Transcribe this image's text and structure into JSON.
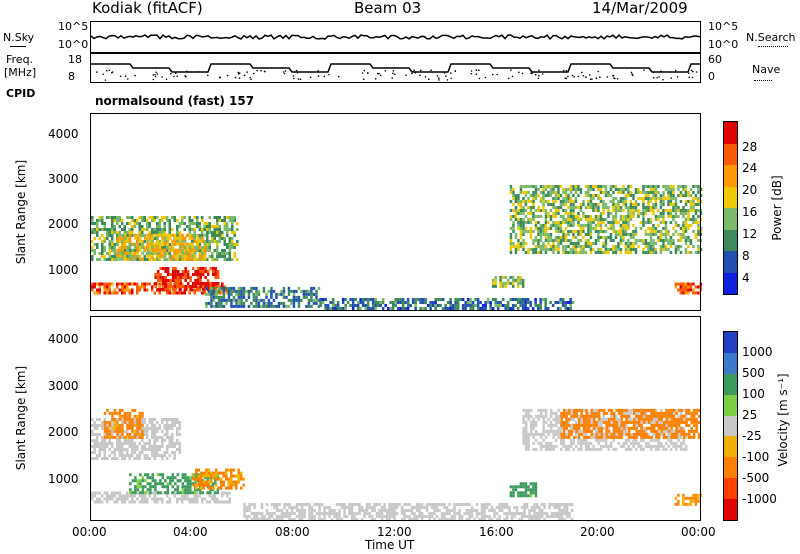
{
  "header": {
    "station": "Kodiak (fitACF)",
    "beam": "Beam 03",
    "date": "14/Mar/2009"
  },
  "summary": {
    "nsky_label": "N.Sky",
    "nsearch_label": "N.Search",
    "freq_label_line1": "Freq.",
    "freq_label_line2": "[MHz]",
    "nave_label": "Nave",
    "cpid_label": "CPID",
    "cpid_value": "normalsound (fast) 157",
    "nsky_ticks": [
      "10^5",
      "10^0"
    ],
    "nsearch_ticks": [
      "10^5",
      "10^0"
    ],
    "freq_ticks": [
      "18",
      "8"
    ],
    "nave_ticks": [
      "60",
      "0"
    ]
  },
  "axes": {
    "xlabel": "Time UT",
    "ylabel": "Slant Range [km]",
    "x_ticks": [
      "00:00",
      "04:00",
      "08:00",
      "12:00",
      "16:00",
      "20:00",
      "00:00"
    ],
    "y_ticks": [
      "1000",
      "2000",
      "3000",
      "4000"
    ]
  },
  "colorbars": {
    "power": {
      "label": "Power [dB]",
      "ticks": [
        "28",
        "24",
        "20",
        "16",
        "12",
        "8",
        "4"
      ],
      "colors": [
        "#e00000",
        "#ff5a00",
        "#ff9a00",
        "#f0c800",
        "#7ab86a",
        "#3a8a5a",
        "#2050b0",
        "#1020e0"
      ]
    },
    "velocity": {
      "label": "Velocity [m s⁻¹]",
      "ticks": [
        "1000",
        "500",
        "100",
        "25",
        "-25",
        "-100",
        "-500",
        "-1000"
      ],
      "colors": [
        "#2040c0",
        "#3a7ac8",
        "#3a9a5a",
        "#7ad040",
        "#c8c8c8",
        "#f0b000",
        "#ff8000",
        "#ff4000",
        "#e00000"
      ]
    }
  },
  "chart_data": [
    {
      "type": "heatmap",
      "title": "",
      "xlabel": "Time UT",
      "ylabel": "Slant Range [km]",
      "xlim": [
        0,
        24
      ],
      "ylim": [
        180,
        4600
      ],
      "z_label": "Power [dB]",
      "z_range": [
        0,
        30
      ],
      "regions": [
        {
          "t": [
            0.0,
            5.5
          ],
          "range": [
            550,
            800
          ],
          "level": 26
        },
        {
          "t": [
            2.5,
            5.0
          ],
          "range": [
            650,
            1150
          ],
          "level": 29
        },
        {
          "t": [
            0.0,
            5.8
          ],
          "range": [
            1300,
            2300
          ],
          "level": 13
        },
        {
          "t": [
            1.0,
            4.5
          ],
          "range": [
            1300,
            1900
          ],
          "level": 19
        },
        {
          "t": [
            4.5,
            9.0
          ],
          "range": [
            280,
            700
          ],
          "level": 9
        },
        {
          "t": [
            9.0,
            19.0
          ],
          "range": [
            190,
            450
          ],
          "level": 8
        },
        {
          "t": [
            15.8,
            17.0
          ],
          "range": [
            700,
            950
          ],
          "level": 14
        },
        {
          "t": [
            16.5,
            24.0
          ],
          "range": [
            1500,
            3000
          ],
          "level": 14
        },
        {
          "t": [
            23.0,
            24.0
          ],
          "range": [
            550,
            800
          ],
          "level": 26
        }
      ]
    },
    {
      "type": "heatmap",
      "title": "",
      "xlabel": "Time UT",
      "ylabel": "Slant Range [km]",
      "xlim": [
        0,
        24
      ],
      "ylim": [
        180,
        4600
      ],
      "z_label": "Velocity [m s⁻¹]",
      "z_range": [
        -1000,
        1000
      ],
      "regions": [
        {
          "t": [
            0.0,
            3.5
          ],
          "range": [
            1500,
            2400
          ],
          "level": 0
        },
        {
          "t": [
            0.5,
            2.0
          ],
          "range": [
            2000,
            2600
          ],
          "level": -200
        },
        {
          "t": [
            0.0,
            5.5
          ],
          "range": [
            550,
            800
          ],
          "level": 0
        },
        {
          "t": [
            1.5,
            5.0
          ],
          "range": [
            800,
            1200
          ],
          "level": 200
        },
        {
          "t": [
            4.0,
            6.0
          ],
          "range": [
            900,
            1300
          ],
          "level": -150
        },
        {
          "t": [
            6.0,
            19.0
          ],
          "range": [
            190,
            550
          ],
          "level": 0
        },
        {
          "t": [
            16.5,
            17.5
          ],
          "range": [
            700,
            1000
          ],
          "level": 200
        },
        {
          "t": [
            17.0,
            23.5
          ],
          "range": [
            1700,
            2600
          ],
          "level": 0
        },
        {
          "t": [
            18.5,
            24.0
          ],
          "range": [
            2000,
            2600
          ],
          "level": -300
        },
        {
          "t": [
            23.0,
            24.0
          ],
          "range": [
            550,
            750
          ],
          "level": -150
        }
      ]
    }
  ]
}
